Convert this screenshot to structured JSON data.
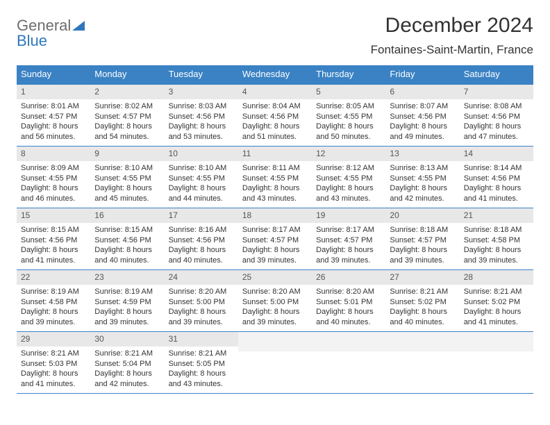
{
  "logo": {
    "line1": "General",
    "line2": "Blue"
  },
  "title": "December 2024",
  "subtitle": "Fontaines-Saint-Martin, France",
  "colors": {
    "header_bg": "#3a82c4",
    "header_fg": "#ffffff",
    "daynum_bg": "#e8e8e8",
    "border": "#3a82c4",
    "logo_gray": "#6d6d6d",
    "logo_blue": "#2f77bb"
  },
  "typography": {
    "title_fontsize": 30,
    "subtitle_fontsize": 17,
    "header_fontsize": 13,
    "daynum_fontsize": 12,
    "body_fontsize": 11
  },
  "calendar": {
    "type": "table",
    "columns": [
      "Sunday",
      "Monday",
      "Tuesday",
      "Wednesday",
      "Thursday",
      "Friday",
      "Saturday"
    ],
    "weeks": [
      [
        {
          "n": "1",
          "sr": "8:01 AM",
          "ss": "4:57 PM",
          "dl": "8 hours and 56 minutes."
        },
        {
          "n": "2",
          "sr": "8:02 AM",
          "ss": "4:57 PM",
          "dl": "8 hours and 54 minutes."
        },
        {
          "n": "3",
          "sr": "8:03 AM",
          "ss": "4:56 PM",
          "dl": "8 hours and 53 minutes."
        },
        {
          "n": "4",
          "sr": "8:04 AM",
          "ss": "4:56 PM",
          "dl": "8 hours and 51 minutes."
        },
        {
          "n": "5",
          "sr": "8:05 AM",
          "ss": "4:55 PM",
          "dl": "8 hours and 50 minutes."
        },
        {
          "n": "6",
          "sr": "8:07 AM",
          "ss": "4:56 PM",
          "dl": "8 hours and 49 minutes."
        },
        {
          "n": "7",
          "sr": "8:08 AM",
          "ss": "4:56 PM",
          "dl": "8 hours and 47 minutes."
        }
      ],
      [
        {
          "n": "8",
          "sr": "8:09 AM",
          "ss": "4:55 PM",
          "dl": "8 hours and 46 minutes."
        },
        {
          "n": "9",
          "sr": "8:10 AM",
          "ss": "4:55 PM",
          "dl": "8 hours and 45 minutes."
        },
        {
          "n": "10",
          "sr": "8:10 AM",
          "ss": "4:55 PM",
          "dl": "8 hours and 44 minutes."
        },
        {
          "n": "11",
          "sr": "8:11 AM",
          "ss": "4:55 PM",
          "dl": "8 hours and 43 minutes."
        },
        {
          "n": "12",
          "sr": "8:12 AM",
          "ss": "4:55 PM",
          "dl": "8 hours and 43 minutes."
        },
        {
          "n": "13",
          "sr": "8:13 AM",
          "ss": "4:55 PM",
          "dl": "8 hours and 42 minutes."
        },
        {
          "n": "14",
          "sr": "8:14 AM",
          "ss": "4:56 PM",
          "dl": "8 hours and 41 minutes."
        }
      ],
      [
        {
          "n": "15",
          "sr": "8:15 AM",
          "ss": "4:56 PM",
          "dl": "8 hours and 41 minutes."
        },
        {
          "n": "16",
          "sr": "8:15 AM",
          "ss": "4:56 PM",
          "dl": "8 hours and 40 minutes."
        },
        {
          "n": "17",
          "sr": "8:16 AM",
          "ss": "4:56 PM",
          "dl": "8 hours and 40 minutes."
        },
        {
          "n": "18",
          "sr": "8:17 AM",
          "ss": "4:57 PM",
          "dl": "8 hours and 39 minutes."
        },
        {
          "n": "19",
          "sr": "8:17 AM",
          "ss": "4:57 PM",
          "dl": "8 hours and 39 minutes."
        },
        {
          "n": "20",
          "sr": "8:18 AM",
          "ss": "4:57 PM",
          "dl": "8 hours and 39 minutes."
        },
        {
          "n": "21",
          "sr": "8:18 AM",
          "ss": "4:58 PM",
          "dl": "8 hours and 39 minutes."
        }
      ],
      [
        {
          "n": "22",
          "sr": "8:19 AM",
          "ss": "4:58 PM",
          "dl": "8 hours and 39 minutes."
        },
        {
          "n": "23",
          "sr": "8:19 AM",
          "ss": "4:59 PM",
          "dl": "8 hours and 39 minutes."
        },
        {
          "n": "24",
          "sr": "8:20 AM",
          "ss": "5:00 PM",
          "dl": "8 hours and 39 minutes."
        },
        {
          "n": "25",
          "sr": "8:20 AM",
          "ss": "5:00 PM",
          "dl": "8 hours and 39 minutes."
        },
        {
          "n": "26",
          "sr": "8:20 AM",
          "ss": "5:01 PM",
          "dl": "8 hours and 40 minutes."
        },
        {
          "n": "27",
          "sr": "8:21 AM",
          "ss": "5:02 PM",
          "dl": "8 hours and 40 minutes."
        },
        {
          "n": "28",
          "sr": "8:21 AM",
          "ss": "5:02 PM",
          "dl": "8 hours and 41 minutes."
        }
      ],
      [
        {
          "n": "29",
          "sr": "8:21 AM",
          "ss": "5:03 PM",
          "dl": "8 hours and 41 minutes."
        },
        {
          "n": "30",
          "sr": "8:21 AM",
          "ss": "5:04 PM",
          "dl": "8 hours and 42 minutes."
        },
        {
          "n": "31",
          "sr": "8:21 AM",
          "ss": "5:05 PM",
          "dl": "8 hours and 43 minutes."
        },
        null,
        null,
        null,
        null
      ]
    ],
    "labels": {
      "sunrise": "Sunrise:",
      "sunset": "Sunset:",
      "daylight": "Daylight:"
    }
  }
}
